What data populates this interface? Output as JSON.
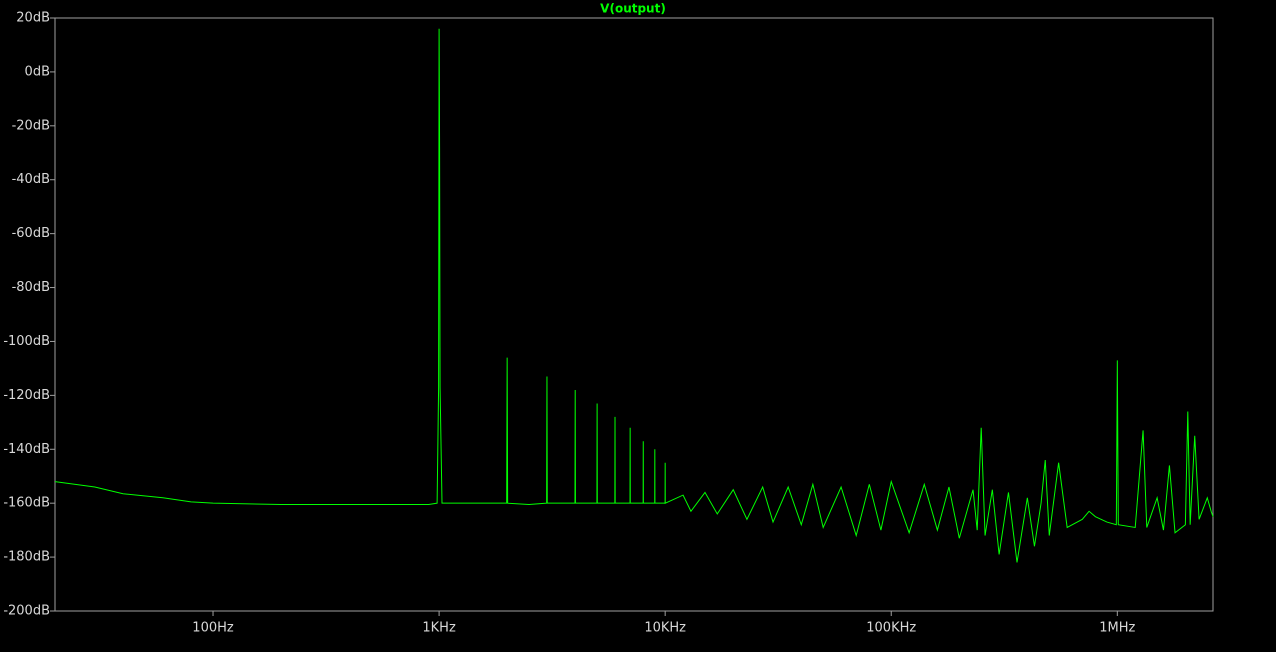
{
  "chart_data": {
    "type": "line",
    "xscale": "log",
    "grid": false,
    "xlim": [
      20,
      2650000
    ],
    "ylim": [
      -200,
      20
    ],
    "xticks": [
      {
        "value": 100,
        "label": "100Hz"
      },
      {
        "value": 1000,
        "label": "1KHz"
      },
      {
        "value": 10000,
        "label": "10KHz"
      },
      {
        "value": 100000,
        "label": "100KHz"
      },
      {
        "value": 1000000,
        "label": "1MHz"
      }
    ],
    "yticks": [
      {
        "value": 20,
        "label": "20dB"
      },
      {
        "value": 0,
        "label": "0dB"
      },
      {
        "value": -20,
        "label": "-20dB"
      },
      {
        "value": -40,
        "label": "-40dB"
      },
      {
        "value": -60,
        "label": "-60dB"
      },
      {
        "value": -80,
        "label": "-80dB"
      },
      {
        "value": -100,
        "label": "-100dB"
      },
      {
        "value": -120,
        "label": "-120dB"
      },
      {
        "value": -140,
        "label": "-140dB"
      },
      {
        "value": -160,
        "label": "-160dB"
      },
      {
        "value": -180,
        "label": "-180dB"
      },
      {
        "value": -200,
        "label": "-200dB"
      }
    ],
    "series": [
      {
        "name": "V(output)",
        "color": "#00ff00",
        "x": [
          20,
          30,
          40,
          60,
          80,
          100,
          200,
          500,
          900,
          980,
          995,
          1000,
          1005,
          1010,
          1030,
          1500,
          1990,
          2000,
          2010,
          2500,
          2990,
          3000,
          3010,
          3990,
          4000,
          4010,
          4990,
          5000,
          5010,
          5990,
          6000,
          6010,
          6990,
          7000,
          7010,
          7990,
          8000,
          8010,
          8990,
          9000,
          9010,
          9990,
          10000,
          10010,
          12000,
          13000,
          15000,
          17000,
          20000,
          23000,
          27000,
          30000,
          35000,
          40000,
          45000,
          50000,
          60000,
          70000,
          80000,
          90000,
          100000,
          120000,
          140000,
          160000,
          180000,
          200000,
          230000,
          240000,
          250000,
          260000,
          280000,
          300000,
          330000,
          360000,
          400000,
          430000,
          460000,
          480000,
          500000,
          550000,
          600000,
          700000,
          750000,
          800000,
          900000,
          990000,
          1000000,
          1010000,
          1200000,
          1300000,
          1350000,
          1500000,
          1600000,
          1700000,
          1800000,
          2000000,
          2050000,
          2100000,
          2200000,
          2300000,
          2500000,
          2600000,
          2650000
        ],
        "values": [
          -152,
          -154,
          -156.5,
          -158,
          -159.5,
          -160,
          -160.5,
          -160.5,
          -160.5,
          -160,
          -117,
          16,
          -28,
          -117,
          -160,
          -160,
          -160,
          -106,
          -160,
          -160.5,
          -160,
          -113,
          -160,
          -160,
          -118,
          -160,
          -160,
          -123,
          -160,
          -160,
          -128,
          -160,
          -160,
          -132,
          -160,
          -160,
          -137,
          -160,
          -160,
          -140,
          -160,
          -160,
          -145,
          -160,
          -157,
          -163,
          -156,
          -164,
          -155,
          -166,
          -154,
          -167,
          -154,
          -168,
          -153,
          -169,
          -154,
          -172,
          -153,
          -170,
          -152,
          -171,
          -153,
          -170,
          -154,
          -173,
          -155,
          -170,
          -132,
          -172,
          -155,
          -179,
          -156,
          -182,
          -158,
          -176,
          -160,
          -144,
          -172,
          -145,
          -169,
          -166,
          -163,
          -165,
          -167,
          -168,
          -107,
          -168,
          -169,
          -133,
          -169,
          -158,
          -170,
          -146,
          -171,
          -168,
          -126,
          -168,
          -135,
          -166,
          -158,
          -163,
          -165
        ]
      }
    ]
  }
}
